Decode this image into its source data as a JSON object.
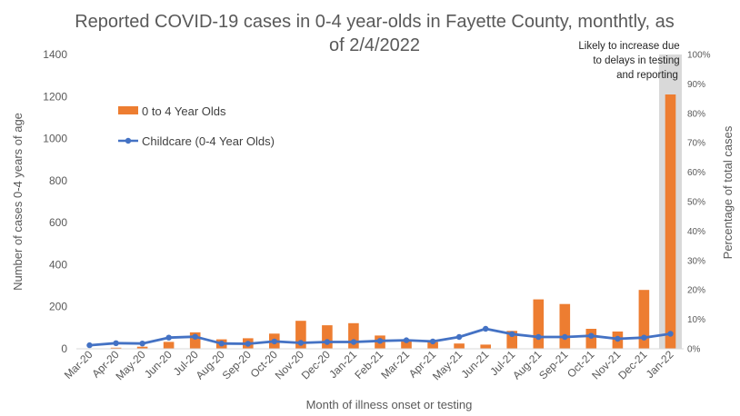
{
  "chart_data": {
    "type": "bar",
    "title_lines": [
      "Reported COVID-19 cases in 0-4 year-olds in Fayette County, monthtly, as",
      "of 2/4/2022"
    ],
    "xlabel": "Month of illness onset or testing",
    "ylabel": "Number of cases 0-4 years of age",
    "y2label": "Percentage of total cases",
    "ylim": [
      0,
      1400
    ],
    "yticks": [
      "0",
      "200",
      "400",
      "600",
      "800",
      "1000",
      "1200",
      "1400"
    ],
    "y2lim": [
      0,
      100
    ],
    "y2ticks": [
      "0%",
      "10%",
      "20%",
      "30%",
      "40%",
      "50%",
      "60%",
      "70%",
      "80%",
      "90%",
      "100%"
    ],
    "categories": [
      "Mar-20",
      "Apr-20",
      "May-20",
      "Jun-20",
      "Jul-20",
      "Aug-20",
      "Sep-20",
      "Oct-20",
      "Nov-20",
      "Dec-20",
      "Jan-21",
      "Feb-21",
      "Mar-21",
      "Apr-21",
      "May-21",
      "Jun-21",
      "Jul-21",
      "Aug-21",
      "Sep-21",
      "Oct-21",
      "Nov-21",
      "Dec-21",
      "Jan-22"
    ],
    "series": [
      {
        "name": "0 to 4 Year Olds",
        "kind": "bar",
        "axis": "left",
        "color": "#ED7D31",
        "values": [
          2,
          5,
          10,
          33,
          78,
          45,
          50,
          72,
          133,
          112,
          122,
          63,
          42,
          32,
          25,
          20,
          85,
          235,
          213,
          95,
          82,
          280,
          1210
        ]
      },
      {
        "name": "Childcare (0-4 Year Olds)",
        "kind": "line",
        "axis": "right",
        "color": "#4472C4",
        "values": [
          1.2,
          1.9,
          1.8,
          3.8,
          4.1,
          1.8,
          1.7,
          2.5,
          2.0,
          2.3,
          2.3,
          2.7,
          2.9,
          2.5,
          4.0,
          6.8,
          5.0,
          4.0,
          4.0,
          4.4,
          3.4,
          3.8,
          5.1
        ]
      }
    ],
    "grid": false,
    "legend_position": "top-left",
    "annotation": {
      "lines": [
        "Likely to increase due",
        "to delays in testing",
        "and reporting"
      ],
      "highlight_category": "Jan-22",
      "highlight_color": "#D9D9D9"
    }
  }
}
